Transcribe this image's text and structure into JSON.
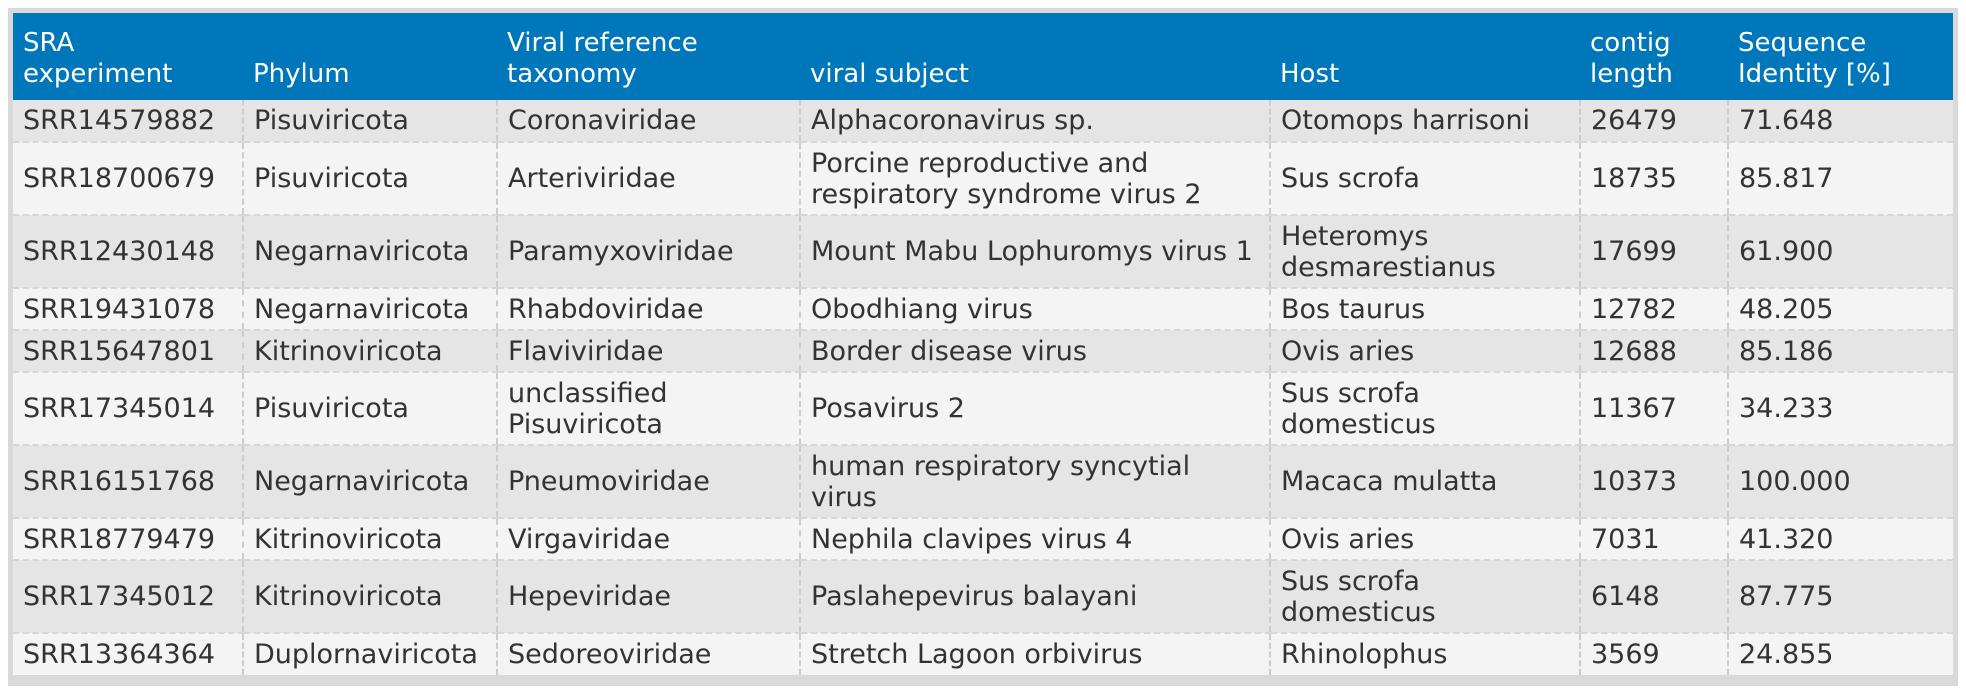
{
  "colors": {
    "header_bg": "#0077bb",
    "header_text": "#ffffff",
    "row_odd": "#e5e5e5",
    "row_even": "#f4f4f4",
    "frame": "#d9d9d9",
    "text": "#333333"
  },
  "table": {
    "headers": [
      {
        "line1": "SRA",
        "line2": "experiment"
      },
      {
        "line1": "",
        "line2": "Phylum"
      },
      {
        "line1": "Viral reference",
        "line2": "taxonomy"
      },
      {
        "line1": "",
        "line2": "viral subject"
      },
      {
        "line1": "",
        "line2": "Host"
      },
      {
        "line1": "contig",
        "line2": "length"
      },
      {
        "line1": "Sequence",
        "line2": "Identity [%]"
      }
    ],
    "rows": [
      {
        "sra": "SRR14579882",
        "phylum": "Pisuviricota",
        "taxonomy": "Coronaviridae",
        "subject": "Alphacoronavirus sp.",
        "host": "Otomops harrisoni",
        "length": "26479",
        "identity": "71.648"
      },
      {
        "sra": "SRR18700679",
        "phylum": "Pisuviricota",
        "taxonomy": "Arteriviridae",
        "subject": "Porcine reproductive and respiratory syndrome virus 2",
        "host": "Sus scrofa",
        "length": "18735",
        "identity": "85.817"
      },
      {
        "sra": "SRR12430148",
        "phylum": "Negarnaviricota",
        "taxonomy": "Paramyxoviridae",
        "subject": "Mount Mabu Lophuromys virus 1",
        "host": "Heteromys desmarestianus",
        "length": "17699",
        "identity": "61.900"
      },
      {
        "sra": "SRR19431078",
        "phylum": "Negarnaviricota",
        "taxonomy": "Rhabdoviridae",
        "subject": "Obodhiang virus",
        "host": "Bos taurus",
        "length": "12782",
        "identity": "48.205"
      },
      {
        "sra": "SRR15647801",
        "phylum": "Kitrinoviricota",
        "taxonomy": "Flaviviridae",
        "subject": "Border disease virus",
        "host": "Ovis aries",
        "length": "12688",
        "identity": "85.186"
      },
      {
        "sra": "SRR17345014",
        "phylum": "Pisuviricota",
        "taxonomy": "unclassified Pisuviricota",
        "subject": "Posavirus 2",
        "host": "Sus scrofa domesticus",
        "length": "11367",
        "identity": "34.233"
      },
      {
        "sra": "SRR16151768",
        "phylum": "Negarnaviricota",
        "taxonomy": "Pneumoviridae",
        "subject": "human respiratory syncytial virus",
        "host": "Macaca mulatta",
        "length": "10373",
        "identity": "100.000"
      },
      {
        "sra": "SRR18779479",
        "phylum": "Kitrinoviricota",
        "taxonomy": "Virgaviridae",
        "subject": "Nephila clavipes virus 4",
        "host": "Ovis aries",
        "length": "7031",
        "identity": "41.320"
      },
      {
        "sra": "SRR17345012",
        "phylum": "Kitrinoviricota",
        "taxonomy": "Hepeviridae",
        "subject": "Paslahepevirus balayani",
        "host": "Sus scrofa domesticus",
        "length": "6148",
        "identity": "87.775"
      },
      {
        "sra": "SRR13364364",
        "phylum": "Duplornaviricota",
        "taxonomy": "Sedoreoviridae",
        "subject": "Stretch Lagoon orbivirus",
        "host": "Rhinolophus",
        "length": "3569",
        "identity": "24.855"
      }
    ]
  }
}
